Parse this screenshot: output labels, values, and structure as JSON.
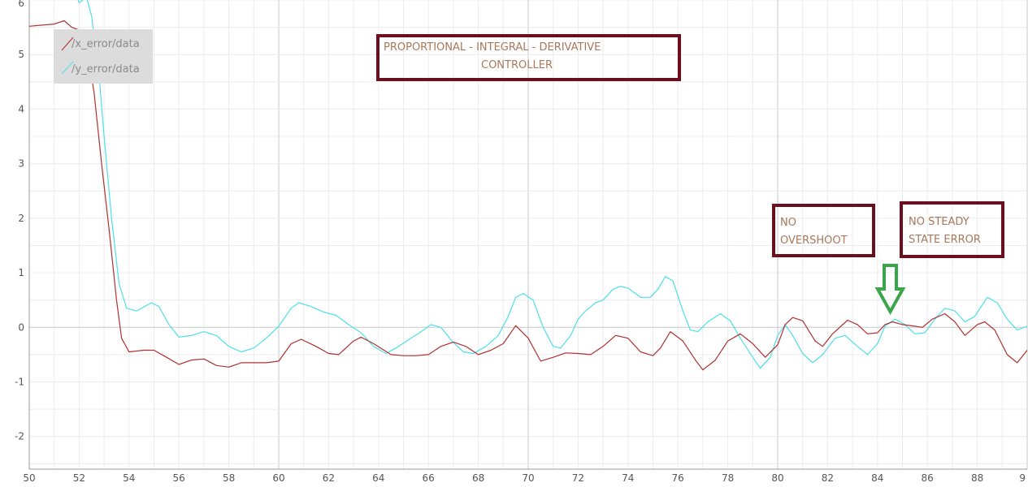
{
  "chart_data": {
    "type": "line",
    "title": "",
    "xlabel": "",
    "ylabel": "",
    "xlim": [
      50,
      90
    ],
    "ylim": [
      -2.6,
      6
    ],
    "x_ticks": [
      "50",
      "52",
      "54",
      "56",
      "58",
      "60",
      "62",
      "64",
      "66",
      "68",
      "70",
      "72",
      "74",
      "76",
      "78",
      "80",
      "82",
      "84",
      "86",
      "88",
      "9"
    ],
    "y_ticks": [
      "6",
      "5",
      "4",
      "3",
      "2",
      "1",
      "0",
      "-1",
      "-2"
    ],
    "grid": true,
    "legend": {
      "position": "top-left"
    },
    "series": [
      {
        "name": "/x_error/data",
        "color": "#b03030",
        "points": [
          [
            50,
            5.52
          ],
          [
            51,
            5.56
          ],
          [
            51.4,
            5.62
          ],
          [
            51.7,
            5.5
          ],
          [
            52,
            5.45
          ],
          [
            52.3,
            5.15
          ],
          [
            52.6,
            4.3
          ],
          [
            52.9,
            3.0
          ],
          [
            53.2,
            1.8
          ],
          [
            53.5,
            0.5
          ],
          [
            53.7,
            -0.2
          ],
          [
            54,
            -0.45
          ],
          [
            54.6,
            -0.42
          ],
          [
            55,
            -0.42
          ],
          [
            55.5,
            -0.55
          ],
          [
            56,
            -0.68
          ],
          [
            56.5,
            -0.6
          ],
          [
            57,
            -0.58
          ],
          [
            57.5,
            -0.7
          ],
          [
            58,
            -0.73
          ],
          [
            58.5,
            -0.65
          ],
          [
            59,
            -0.65
          ],
          [
            59.5,
            -0.65
          ],
          [
            60,
            -0.62
          ],
          [
            60.5,
            -0.3
          ],
          [
            60.9,
            -0.22
          ],
          [
            61.5,
            -0.35
          ],
          [
            62,
            -0.48
          ],
          [
            62.4,
            -0.5
          ],
          [
            63,
            -0.25
          ],
          [
            63.3,
            -0.18
          ],
          [
            63.8,
            -0.3
          ],
          [
            64.5,
            -0.5
          ],
          [
            65,
            -0.52
          ],
          [
            65.5,
            -0.52
          ],
          [
            66,
            -0.5
          ],
          [
            66.5,
            -0.35
          ],
          [
            67,
            -0.27
          ],
          [
            67.5,
            -0.35
          ],
          [
            68,
            -0.5
          ],
          [
            68.5,
            -0.42
          ],
          [
            69,
            -0.3
          ],
          [
            69.5,
            0.03
          ],
          [
            70,
            -0.2
          ],
          [
            70.5,
            -0.62
          ],
          [
            71,
            -0.55
          ],
          [
            71.5,
            -0.47
          ],
          [
            72,
            -0.48
          ],
          [
            72.5,
            -0.5
          ],
          [
            73,
            -0.35
          ],
          [
            73.5,
            -0.15
          ],
          [
            74,
            -0.2
          ],
          [
            74.5,
            -0.45
          ],
          [
            75,
            -0.52
          ],
          [
            75.3,
            -0.38
          ],
          [
            75.7,
            -0.08
          ],
          [
            76.2,
            -0.25
          ],
          [
            76.7,
            -0.6
          ],
          [
            77,
            -0.78
          ],
          [
            77.5,
            -0.6
          ],
          [
            78,
            -0.25
          ],
          [
            78.5,
            -0.12
          ],
          [
            79,
            -0.3
          ],
          [
            79.5,
            -0.55
          ],
          [
            80,
            -0.32
          ],
          [
            80.3,
            0.05
          ],
          [
            80.6,
            0.18
          ],
          [
            81,
            0.12
          ],
          [
            81.5,
            -0.25
          ],
          [
            81.8,
            -0.35
          ],
          [
            82.2,
            -0.12
          ],
          [
            82.8,
            0.13
          ],
          [
            83.2,
            0.05
          ],
          [
            83.6,
            -0.12
          ],
          [
            84,
            -0.1
          ],
          [
            84.3,
            0.05
          ],
          [
            84.6,
            0.1
          ],
          [
            85,
            0.05
          ],
          [
            85.5,
            0.02
          ],
          [
            85.8,
            0
          ],
          [
            86.2,
            0.15
          ],
          [
            86.7,
            0.25
          ],
          [
            87.1,
            0.1
          ],
          [
            87.5,
            -0.15
          ],
          [
            88,
            0.05
          ],
          [
            88.3,
            0.1
          ],
          [
            88.7,
            -0.05
          ],
          [
            89.2,
            -0.5
          ],
          [
            89.6,
            -0.65
          ],
          [
            90,
            -0.42
          ]
        ]
      },
      {
        "name": "/y_error/data",
        "color": "#4de0e8",
        "points": [
          [
            51.8,
            6.2
          ],
          [
            52,
            5.95
          ],
          [
            52.3,
            6.05
          ],
          [
            52.5,
            5.7
          ],
          [
            52.8,
            4.6
          ],
          [
            53,
            3.5
          ],
          [
            53.3,
            2.0
          ],
          [
            53.6,
            0.8
          ],
          [
            53.9,
            0.35
          ],
          [
            54.3,
            0.3
          ],
          [
            54.9,
            0.45
          ],
          [
            55.2,
            0.38
          ],
          [
            55.6,
            0.05
          ],
          [
            56,
            -0.18
          ],
          [
            56.5,
            -0.15
          ],
          [
            57,
            -0.08
          ],
          [
            57.5,
            -0.15
          ],
          [
            58,
            -0.35
          ],
          [
            58.5,
            -0.45
          ],
          [
            59,
            -0.38
          ],
          [
            59.5,
            -0.2
          ],
          [
            60,
            0.02
          ],
          [
            60.5,
            0.35
          ],
          [
            60.8,
            0.45
          ],
          [
            61.3,
            0.38
          ],
          [
            61.8,
            0.28
          ],
          [
            62.3,
            0.22
          ],
          [
            62.8,
            0.05
          ],
          [
            63.3,
            -0.1
          ],
          [
            63.8,
            -0.35
          ],
          [
            64.3,
            -0.48
          ],
          [
            64.8,
            -0.35
          ],
          [
            65.3,
            -0.2
          ],
          [
            65.8,
            -0.05
          ],
          [
            66.1,
            0.05
          ],
          [
            66.5,
            0
          ],
          [
            67,
            -0.28
          ],
          [
            67.4,
            -0.45
          ],
          [
            67.8,
            -0.48
          ],
          [
            68.3,
            -0.35
          ],
          [
            68.8,
            -0.15
          ],
          [
            69.2,
            0.2
          ],
          [
            69.5,
            0.55
          ],
          [
            69.8,
            0.62
          ],
          [
            70.2,
            0.5
          ],
          [
            70.6,
            0
          ],
          [
            71,
            -0.35
          ],
          [
            71.3,
            -0.38
          ],
          [
            71.7,
            -0.15
          ],
          [
            72,
            0.15
          ],
          [
            72.3,
            0.3
          ],
          [
            72.7,
            0.45
          ],
          [
            73,
            0.5
          ],
          [
            73.4,
            0.7
          ],
          [
            73.7,
            0.75
          ],
          [
            74,
            0.72
          ],
          [
            74.5,
            0.55
          ],
          [
            74.9,
            0.55
          ],
          [
            75.2,
            0.7
          ],
          [
            75.5,
            0.93
          ],
          [
            75.8,
            0.85
          ],
          [
            76.2,
            0.3
          ],
          [
            76.5,
            -0.05
          ],
          [
            76.8,
            -0.08
          ],
          [
            77.2,
            0.1
          ],
          [
            77.7,
            0.25
          ],
          [
            78.1,
            0.12
          ],
          [
            78.5,
            -0.2
          ],
          [
            79,
            -0.55
          ],
          [
            79.3,
            -0.75
          ],
          [
            79.7,
            -0.55
          ],
          [
            80,
            -0.15
          ],
          [
            80.3,
            0.05
          ],
          [
            80.6,
            -0.15
          ],
          [
            81,
            -0.48
          ],
          [
            81.4,
            -0.65
          ],
          [
            81.8,
            -0.5
          ],
          [
            82.3,
            -0.2
          ],
          [
            82.7,
            -0.15
          ],
          [
            83.2,
            -0.35
          ],
          [
            83.6,
            -0.5
          ],
          [
            84,
            -0.3
          ],
          [
            84.3,
            0.02
          ],
          [
            84.7,
            0.15
          ],
          [
            85.1,
            0.05
          ],
          [
            85.5,
            -0.12
          ],
          [
            85.9,
            -0.1
          ],
          [
            86.3,
            0.15
          ],
          [
            86.7,
            0.35
          ],
          [
            87.1,
            0.3
          ],
          [
            87.5,
            0.1
          ],
          [
            87.9,
            0.2
          ],
          [
            88.4,
            0.55
          ],
          [
            88.8,
            0.45
          ],
          [
            89.2,
            0.15
          ],
          [
            89.6,
            -0.05
          ],
          [
            90,
            0.02
          ]
        ]
      }
    ],
    "annotations": [
      {
        "lines": [
          "PROPORTIONAL - INTEGRAL - DERIVATIVE",
          "CONTROLLER"
        ]
      },
      {
        "lines": [
          "NO",
          "OVERSHOOT"
        ]
      },
      {
        "lines": [
          "NO STEADY",
          "STATE ERROR"
        ]
      }
    ]
  }
}
